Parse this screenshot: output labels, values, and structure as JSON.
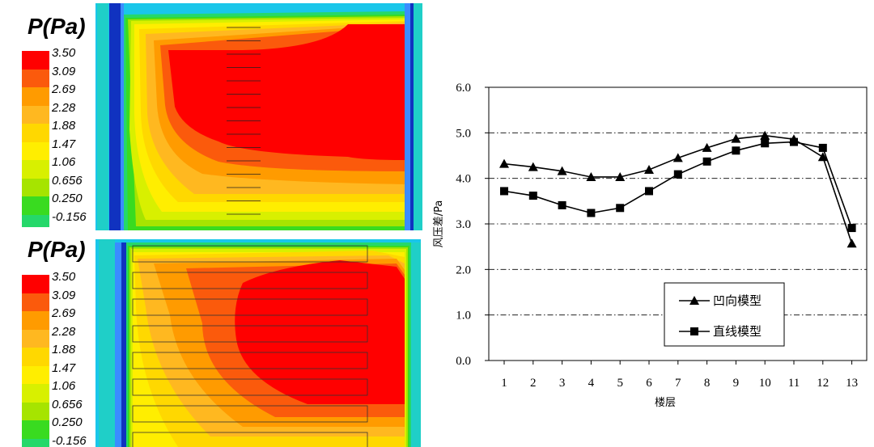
{
  "contours": {
    "panels": [
      {
        "legend_title": "P(Pa)",
        "levels": [
          "3.50",
          "3.09",
          "2.69",
          "2.28",
          "1.88",
          "1.47",
          "1.06",
          "0.656",
          "0.250",
          "-0.156"
        ]
      },
      {
        "legend_title": "P(Pa)",
        "levels": [
          "3.50",
          "3.09",
          "2.69",
          "2.28",
          "1.88",
          "1.47",
          "1.06",
          "0.656",
          "0.250",
          "-0.156"
        ]
      }
    ],
    "colors": [
      "#ff0000",
      "#fb5a0c",
      "#ff9b00",
      "#ffb820",
      "#ffd800",
      "#ffee00",
      "#d8f000",
      "#a6e400",
      "#39db20",
      "#25d86a",
      "#1fcfc8",
      "#19c6ea",
      "#3a8cff",
      "#1032c0"
    ]
  },
  "chart_data": {
    "type": "line",
    "x": [
      1,
      2,
      3,
      4,
      5,
      6,
      7,
      8,
      9,
      10,
      11,
      12,
      13
    ],
    "series": [
      {
        "name": "凹向模型",
        "marker": "triangle",
        "color": "#000000",
        "values": [
          4.32,
          4.25,
          4.16,
          4.03,
          4.03,
          4.19,
          4.45,
          4.67,
          4.87,
          4.94,
          4.86,
          4.47,
          2.57
        ]
      },
      {
        "name": "直线模型",
        "marker": "square",
        "color": "#000000",
        "values": [
          3.72,
          3.62,
          3.41,
          3.24,
          3.35,
          3.72,
          4.09,
          4.37,
          4.61,
          4.77,
          4.8,
          4.67,
          2.91
        ]
      }
    ],
    "xlabel": "楼层",
    "ylabel": "风压差/Pa",
    "ylim": [
      0,
      6
    ],
    "yticks": [
      "0.0",
      "1.0",
      "2.0",
      "3.0",
      "4.0",
      "5.0",
      "6.0"
    ],
    "xticks": [
      "1",
      "2",
      "3",
      "4",
      "5",
      "6",
      "7",
      "8",
      "9",
      "10",
      "11",
      "12",
      "13"
    ],
    "grid": "horizontal dash-dot",
    "legend_position": "lower-center"
  }
}
